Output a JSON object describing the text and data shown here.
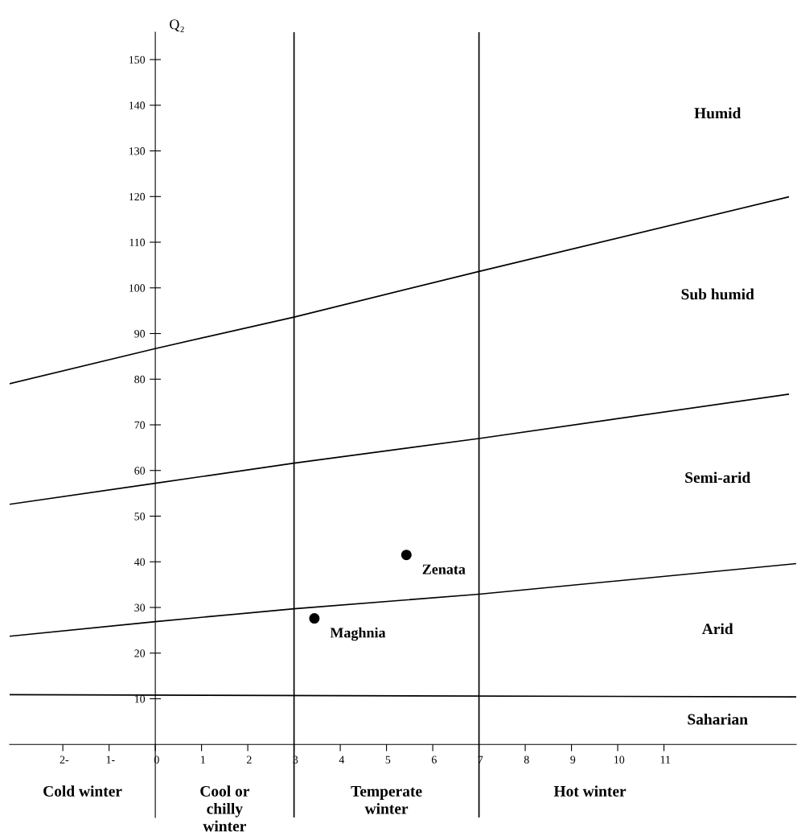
{
  "chart_data": {
    "type": "line",
    "ylabel": "Q₂",
    "xlim": [
      -3.15,
      13.86
    ],
    "ylim": [
      -16,
      156
    ],
    "xticks": [
      {
        "value": -2,
        "label": "2-"
      },
      {
        "value": -1,
        "label": "1-"
      },
      0,
      1,
      2,
      3,
      4,
      5,
      6,
      7,
      8,
      9,
      10,
      11
    ],
    "yticks": [
      10,
      20,
      30,
      40,
      50,
      60,
      70,
      80,
      90,
      100,
      110,
      120,
      130,
      140,
      150
    ],
    "grid": false,
    "legend": false,
    "series": [
      {
        "color": "#000000",
        "x": [
          -3.15,
          0,
          3,
          7,
          13.69
        ],
        "values": [
          79,
          86.7,
          93.6,
          103.6,
          119.9
        ]
      },
      {
        "color": "#000000",
        "x": [
          -3.15,
          0,
          3,
          7,
          13.69
        ],
        "values": [
          52.6,
          57.2,
          61.6,
          67.0,
          76.7
        ]
      },
      {
        "color": "#000000",
        "x": [
          -3.15,
          0,
          3,
          7,
          13.86
        ],
        "values": [
          23.7,
          26.9,
          29.7,
          32.9,
          39.6
        ]
      },
      {
        "color": "#000000",
        "x": [
          -3.15,
          13.86
        ],
        "values": [
          10.9,
          10.4
        ]
      },
      {
        "type": "scatter",
        "color": "#000000",
        "marker": "circle",
        "x": [
          5.43,
          3.44
        ],
        "values": [
          41.5,
          27.6
        ]
      }
    ],
    "ref_lines": [
      {
        "axis": "x",
        "value": 3,
        "color": "#000000"
      },
      {
        "axis": "x",
        "value": 7,
        "color": "#000000"
      }
    ],
    "annotations": [
      {
        "text": "Zenata",
        "x": 5.43,
        "y": 41.5
      },
      {
        "text": "Maghnia",
        "x": 3.44,
        "y": 27.6
      },
      "Humid",
      "Sub humid",
      "Semi-arid",
      "Arid",
      "Saharian",
      "Cold winter",
      "Cool or chilly winter",
      "Temperate winter",
      "Hot winter"
    ]
  }
}
